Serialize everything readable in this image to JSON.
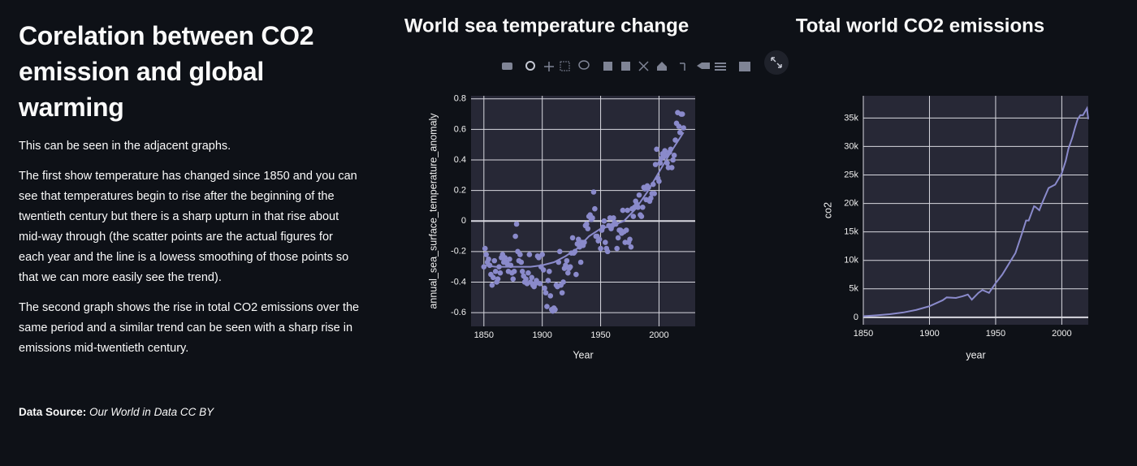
{
  "text": {
    "title": "Corelation between CO2 emission and global warming",
    "paragraphs": [
      "This can be seen in the adjacent graphs.",
      "The first show temperature has changed since 1850 and you can see that temperatures begin to rise after the beginning of the twentieth century but there is a sharp upturn in that rise about mid-way through (the scatter points are the actual figures for each year and the line is a lowess smoothing of those points so that we can more easily see the trend).",
      "The second graph shows the rise in total CO2 emissions over the same period and a similar trend can be seen with a sharp rise in emissions mid-twentieth century."
    ],
    "source_label": "Data Source:",
    "source": "Our World in Data CC BY"
  },
  "chart_data": [
    {
      "type": "scatter",
      "title": "World sea temperature change",
      "xlabel": "Year",
      "ylabel": "annual_sea_surface_temperature_anomaly",
      "xlim": [
        1839,
        2031
      ],
      "ylim": [
        -0.69,
        0.82
      ],
      "xticks": [
        1850,
        1900,
        1950,
        2000
      ],
      "yticks": [
        -0.6,
        -0.4,
        -0.2,
        0,
        0.2,
        0.4,
        0.6,
        0.8
      ],
      "grid": true,
      "series": [
        {
          "mode": "markers",
          "color": "#8a8acb",
          "x": [
            1850,
            1851,
            1852,
            1853,
            1854,
            1855,
            1856,
            1857,
            1858,
            1859,
            1860,
            1861,
            1862,
            1863,
            1864,
            1865,
            1866,
            1867,
            1868,
            1869,
            1870,
            1871,
            1872,
            1873,
            1874,
            1875,
            1876,
            1877,
            1878,
            1879,
            1880,
            1881,
            1882,
            1883,
            1884,
            1885,
            1886,
            1887,
            1888,
            1889,
            1890,
            1891,
            1892,
            1893,
            1894,
            1895,
            1896,
            1897,
            1898,
            1899,
            1900,
            1901,
            1902,
            1903,
            1904,
            1905,
            1906,
            1907,
            1908,
            1909,
            1910,
            1911,
            1912,
            1913,
            1914,
            1915,
            1916,
            1917,
            1918,
            1919,
            1920,
            1921,
            1922,
            1923,
            1924,
            1925,
            1926,
            1927,
            1928,
            1929,
            1930,
            1931,
            1932,
            1933,
            1934,
            1935,
            1936,
            1937,
            1938,
            1939,
            1940,
            1941,
            1942,
            1943,
            1944,
            1945,
            1946,
            1947,
            1948,
            1949,
            1950,
            1951,
            1952,
            1953,
            1954,
            1955,
            1956,
            1957,
            1958,
            1959,
            1960,
            1961,
            1962,
            1963,
            1964,
            1965,
            1966,
            1967,
            1968,
            1969,
            1970,
            1971,
            1972,
            1973,
            1974,
            1975,
            1976,
            1977,
            1978,
            1979,
            1980,
            1981,
            1982,
            1983,
            1984,
            1985,
            1986,
            1987,
            1988,
            1989,
            1990,
            1991,
            1992,
            1993,
            1994,
            1995,
            1996,
            1997,
            1998,
            1999,
            2000,
            2001,
            2002,
            2003,
            2004,
            2005,
            2006,
            2007,
            2008,
            2009,
            2010,
            2011,
            2012,
            2013,
            2014,
            2015,
            2016,
            2017,
            2018,
            2019,
            2020,
            2021
          ],
          "values": [
            -0.3,
            -0.18,
            -0.22,
            -0.27,
            -0.25,
            -0.29,
            -0.35,
            -0.42,
            -0.37,
            -0.26,
            -0.33,
            -0.4,
            -0.38,
            -0.3,
            -0.34,
            -0.24,
            -0.22,
            -0.27,
            -0.24,
            -0.27,
            -0.28,
            -0.33,
            -0.25,
            -0.29,
            -0.34,
            -0.38,
            -0.33,
            -0.1,
            -0.02,
            -0.2,
            -0.26,
            -0.22,
            -0.27,
            -0.33,
            -0.36,
            -0.4,
            -0.38,
            -0.41,
            -0.34,
            -0.22,
            -0.4,
            -0.37,
            -0.42,
            -0.43,
            -0.41,
            -0.39,
            -0.23,
            -0.24,
            -0.41,
            -0.3,
            -0.22,
            -0.32,
            -0.44,
            -0.47,
            -0.56,
            -0.39,
            -0.33,
            -0.49,
            -0.58,
            -0.59,
            -0.57,
            -0.58,
            -0.42,
            -0.43,
            -0.27,
            -0.2,
            -0.42,
            -0.47,
            -0.4,
            -0.31,
            -0.29,
            -0.26,
            -0.34,
            -0.31,
            -0.3,
            -0.21,
            -0.11,
            -0.21,
            -0.2,
            -0.35,
            -0.15,
            -0.12,
            -0.17,
            -0.27,
            -0.14,
            -0.16,
            -0.14,
            -0.03,
            -0.02,
            -0.05,
            0.03,
            0.04,
            0.01,
            0.02,
            0.19,
            0.08,
            -0.1,
            -0.1,
            -0.13,
            -0.12,
            -0.18,
            -0.06,
            -0.04,
            0.0,
            -0.14,
            -0.18,
            -0.2,
            -0.03,
            0.02,
            -0.05,
            -0.03,
            0.02,
            -0.01,
            -0.02,
            -0.18,
            -0.11,
            -0.06,
            -0.06,
            -0.08,
            0.07,
            -0.07,
            -0.14,
            -0.06,
            0.07,
            -0.14,
            -0.12,
            -0.17,
            0.08,
            0.03,
            0.09,
            0.13,
            0.11,
            0.09,
            0.17,
            0.04,
            0.03,
            0.09,
            0.22,
            0.21,
            0.14,
            0.23,
            0.22,
            0.13,
            0.15,
            0.18,
            0.24,
            0.18,
            0.37,
            0.47,
            0.28,
            0.26,
            0.38,
            0.41,
            0.44,
            0.42,
            0.46,
            0.43,
            0.38,
            0.35,
            0.45,
            0.47,
            0.35,
            0.4,
            0.43,
            0.53,
            0.64,
            0.71,
            0.62,
            0.58,
            0.7,
            0.7,
            0.61
          ]
        },
        {
          "mode": "lines",
          "color": "#8a8acb",
          "x": [
            1850,
            1860,
            1870,
            1880,
            1890,
            1900,
            1910,
            1920,
            1930,
            1940,
            1950,
            1960,
            1970,
            1980,
            1990,
            2000,
            2010,
            2021
          ],
          "values": [
            -0.29,
            -0.3,
            -0.3,
            -0.3,
            -0.3,
            -0.29,
            -0.27,
            -0.23,
            -0.18,
            -0.1,
            -0.05,
            -0.03,
            0.0,
            0.08,
            0.19,
            0.32,
            0.45,
            0.58
          ]
        }
      ]
    },
    {
      "type": "line",
      "title": "Total world CO2 emissions",
      "xlabel": "year",
      "ylabel": "co2",
      "xlim": [
        1850,
        2020
      ],
      "ylim": [
        -1300,
        38900
      ],
      "xticks": [
        1850,
        1900,
        1950,
        2000
      ],
      "yticks": [
        0,
        {
          "value": 5000,
          "label": "5k"
        },
        {
          "value": 10000,
          "label": "10k"
        },
        {
          "value": 15000,
          "label": "15k"
        },
        {
          "value": 20000,
          "label": "20k"
        },
        {
          "value": 25000,
          "label": "25k"
        },
        {
          "value": 30000,
          "label": "30k"
        },
        {
          "value": 35000,
          "label": "35k"
        }
      ],
      "grid": true,
      "series": [
        {
          "mode": "lines",
          "color": "#8a8acb",
          "x": [
            1850,
            1860,
            1870,
            1880,
            1890,
            1900,
            1910,
            1913,
            1920,
            1925,
            1929,
            1932,
            1937,
            1940,
            1945,
            1950,
            1955,
            1960,
            1965,
            1970,
            1973,
            1975,
            1979,
            1980,
            1983,
            1985,
            1990,
            1995,
            2000,
            2003,
            2005,
            2008,
            2010,
            2012,
            2014,
            2016,
            2019,
            2020
          ],
          "values": [
            200,
            350,
            550,
            850,
            1300,
            1950,
            3000,
            3500,
            3400,
            3700,
            4000,
            3100,
            4300,
            4800,
            4300,
            6000,
            7500,
            9400,
            11300,
            14800,
            17000,
            17000,
            19500,
            19400,
            18800,
            20000,
            22700,
            23300,
            25300,
            27500,
            29600,
            31600,
            33300,
            34800,
            35500,
            35500,
            36700,
            34800
          ]
        }
      ]
    }
  ]
}
